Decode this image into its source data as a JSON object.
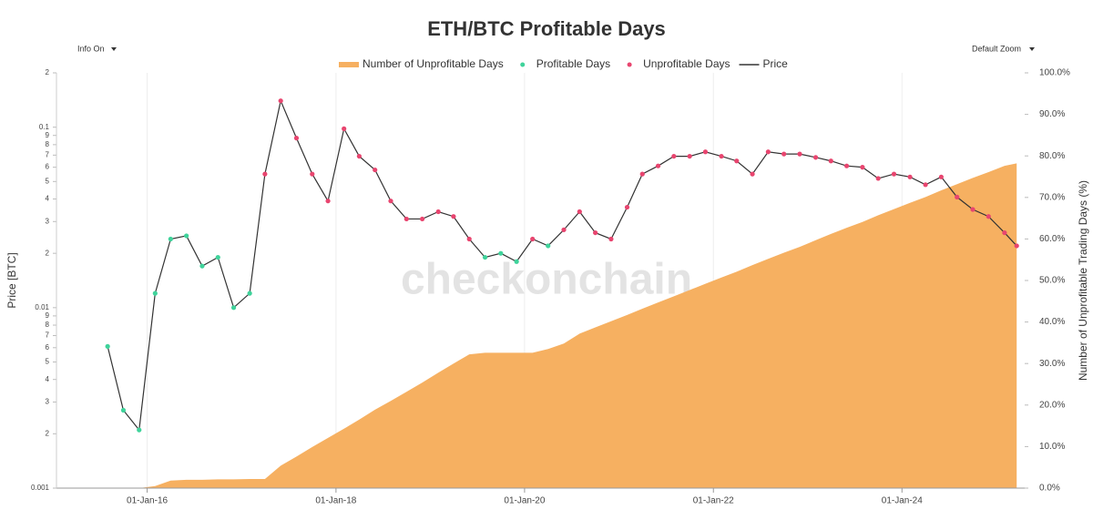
{
  "controls": {
    "info": "Info On",
    "zoom": "Default Zoom"
  },
  "chart_data": {
    "type": "line",
    "title": "ETH/BTC Profitable Days",
    "watermark": "checkonchain",
    "y_label": "Price [BTC]",
    "y2_label": "Number of Unprofitable Trading Days (%)",
    "y_log": true,
    "grid": "x",
    "legend": "top",
    "x": [
      "2015-08-01",
      "2015-10-01",
      "2015-12-01",
      "2016-02-01",
      "2016-04-01",
      "2016-06-01",
      "2016-08-01",
      "2016-10-01",
      "2016-12-01",
      "2017-02-01",
      "2017-04-01",
      "2017-06-01",
      "2017-08-01",
      "2017-10-01",
      "2017-12-01",
      "2018-02-01",
      "2018-04-01",
      "2018-06-01",
      "2018-08-01",
      "2018-10-01",
      "2018-12-01",
      "2019-02-01",
      "2019-04-01",
      "2019-06-01",
      "2019-08-01",
      "2019-10-01",
      "2019-12-01",
      "2020-02-01",
      "2020-04-01",
      "2020-06-01",
      "2020-08-01",
      "2020-10-01",
      "2020-12-01",
      "2021-02-01",
      "2021-04-01",
      "2021-06-01",
      "2021-08-01",
      "2021-10-01",
      "2021-12-01",
      "2022-02-01",
      "2022-04-01",
      "2022-06-01",
      "2022-08-01",
      "2022-10-01",
      "2022-12-01",
      "2023-02-01",
      "2023-04-01",
      "2023-06-01",
      "2023-08-01",
      "2023-10-01",
      "2023-12-01",
      "2024-02-01",
      "2024-04-01",
      "2024-06-01",
      "2024-08-01",
      "2024-10-01",
      "2024-12-01",
      "2025-02-01",
      "2025-03-20"
    ],
    "series": [
      {
        "name": "Number of Unprofitable Days",
        "kind": "area",
        "axis": "y2",
        "color": "#f6b061",
        "values": [
          0,
          0,
          0,
          0.5,
          1.8,
          2.0,
          2.0,
          2.1,
          2.1,
          2.2,
          2.2,
          5.4,
          7.6,
          9.9,
          12.1,
          14.3,
          16.5,
          18.9,
          21.0,
          23.2,
          25.4,
          27.8,
          30.0,
          32.2,
          32.6,
          32.6,
          32.6,
          32.6,
          33.5,
          34.8,
          37.2,
          38.7,
          40.2,
          41.7,
          43.2,
          44.7,
          46.2,
          47.7,
          49.2,
          50.7,
          52.1,
          53.7,
          55.2,
          56.7,
          58.1,
          59.7,
          61.2,
          62.7,
          64.1,
          65.7,
          67.2,
          68.7,
          70.1,
          71.7,
          73.2,
          74.7,
          76.1,
          77.6,
          78.2
        ]
      },
      {
        "name": "Profitable Days",
        "kind": "points",
        "color": "#3fd39b",
        "values": [
          0.0061,
          0.0027,
          0.0021,
          0.012,
          0.024,
          0.025,
          0.017,
          0.019,
          0.01,
          0.012,
          null,
          null,
          null,
          null,
          null,
          null,
          null,
          null,
          null,
          null,
          null,
          null,
          null,
          null,
          0.019,
          0.02,
          0.018,
          null,
          0.022,
          null,
          null,
          null,
          null,
          null,
          null,
          null,
          null,
          null,
          null,
          null,
          null,
          null,
          null,
          null,
          null,
          null,
          null,
          null,
          null,
          null,
          null,
          null,
          null,
          null,
          null,
          null,
          null,
          null,
          null
        ]
      },
      {
        "name": "Unprofitable Days",
        "kind": "points",
        "color": "#e8456f",
        "values": [
          null,
          null,
          null,
          null,
          null,
          null,
          null,
          null,
          null,
          null,
          0.055,
          0.14,
          0.087,
          0.055,
          0.039,
          0.098,
          0.069,
          0.058,
          0.039,
          0.031,
          0.031,
          0.034,
          0.032,
          0.024,
          null,
          null,
          null,
          0.024,
          null,
          0.027,
          0.034,
          0.026,
          0.024,
          0.036,
          0.055,
          0.061,
          0.069,
          0.069,
          0.073,
          0.069,
          0.065,
          0.055,
          0.073,
          0.071,
          0.071,
          0.068,
          0.065,
          0.061,
          0.06,
          0.052,
          0.055,
          0.053,
          0.048,
          0.053,
          0.041,
          0.035,
          0.032,
          0.026,
          0.022
        ]
      },
      {
        "name": "Price",
        "kind": "line",
        "color": "#333333",
        "values": [
          0.0061,
          0.0027,
          0.0021,
          0.012,
          0.024,
          0.025,
          0.017,
          0.019,
          0.01,
          0.012,
          0.055,
          0.14,
          0.087,
          0.055,
          0.039,
          0.098,
          0.069,
          0.058,
          0.039,
          0.031,
          0.031,
          0.034,
          0.032,
          0.024,
          0.019,
          0.02,
          0.018,
          0.024,
          0.022,
          0.027,
          0.034,
          0.026,
          0.024,
          0.036,
          0.055,
          0.061,
          0.069,
          0.069,
          0.073,
          0.069,
          0.065,
          0.055,
          0.073,
          0.071,
          0.071,
          0.068,
          0.065,
          0.061,
          0.06,
          0.052,
          0.055,
          0.053,
          0.048,
          0.053,
          0.041,
          0.035,
          0.032,
          0.026,
          0.022
        ]
      }
    ],
    "xlim": [
      "2015-01-15",
      "2025-04-20"
    ],
    "xticks": [
      {
        "value": "2016-01-01",
        "label": "01-Jan-16"
      },
      {
        "value": "2018-01-01",
        "label": "01-Jan-18"
      },
      {
        "value": "2020-01-01",
        "label": "01-Jan-20"
      },
      {
        "value": "2022-01-01",
        "label": "01-Jan-22"
      },
      {
        "value": "2024-01-01",
        "label": "01-Jan-24"
      }
    ],
    "ylim": [
      0.001,
      0.2
    ],
    "yticks": [
      0.001,
      {
        "value": 0.002,
        "label": "2"
      },
      {
        "value": 0.003,
        "label": "3"
      },
      {
        "value": 0.004,
        "label": "4"
      },
      {
        "value": 0.005,
        "label": "5"
      },
      {
        "value": 0.006,
        "label": "6"
      },
      {
        "value": 0.007,
        "label": "7"
      },
      {
        "value": 0.008,
        "label": "8"
      },
      {
        "value": 0.009,
        "label": "9"
      },
      0.01,
      {
        "value": 0.02,
        "label": "2"
      },
      {
        "value": 0.03,
        "label": "3"
      },
      {
        "value": 0.04,
        "label": "4"
      },
      {
        "value": 0.05,
        "label": "5"
      },
      {
        "value": 0.06,
        "label": "6"
      },
      {
        "value": 0.07,
        "label": "7"
      },
      {
        "value": 0.08,
        "label": "8"
      },
      {
        "value": 0.09,
        "label": "9"
      },
      0.1,
      {
        "value": 0.2,
        "label": "2"
      }
    ],
    "y2lim": [
      0,
      100
    ],
    "y2ticks": [
      {
        "value": 0,
        "label": "0.0%"
      },
      {
        "value": 10,
        "label": "10.0%"
      },
      {
        "value": 20,
        "label": "20.0%"
      },
      {
        "value": 30,
        "label": "30.0%"
      },
      {
        "value": 40,
        "label": "40.0%"
      },
      {
        "value": 50,
        "label": "50.0%"
      },
      {
        "value": 60,
        "label": "60.0%"
      },
      {
        "value": 70,
        "label": "70.0%"
      },
      {
        "value": 80,
        "label": "80.0%"
      },
      {
        "value": 90,
        "label": "90.0%"
      },
      {
        "value": 100,
        "label": "100.0%"
      }
    ]
  }
}
